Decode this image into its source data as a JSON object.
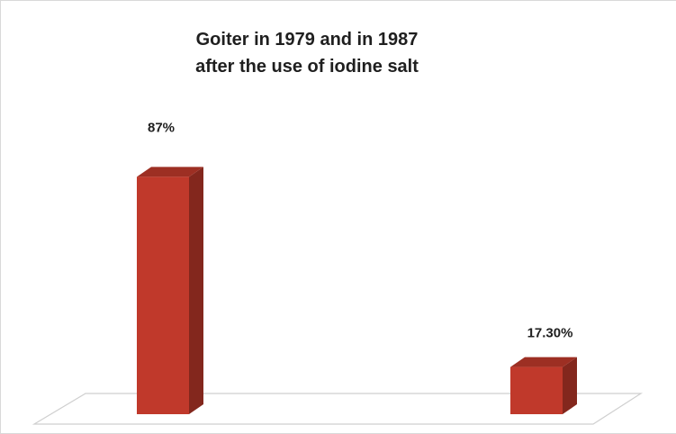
{
  "chart_data": {
    "type": "bar",
    "title_lines": [
      "Goiter in 1979 and in 1987",
      "after the use of iodine salt"
    ],
    "xlabel": "",
    "ylabel": "",
    "ylim": [
      0,
      100
    ],
    "grid": false,
    "legend": "none",
    "series": [
      {
        "values": [
          87,
          17.3
        ],
        "labels": [
          "87%",
          "17.30%"
        ],
        "color": "#c0392b"
      }
    ]
  }
}
